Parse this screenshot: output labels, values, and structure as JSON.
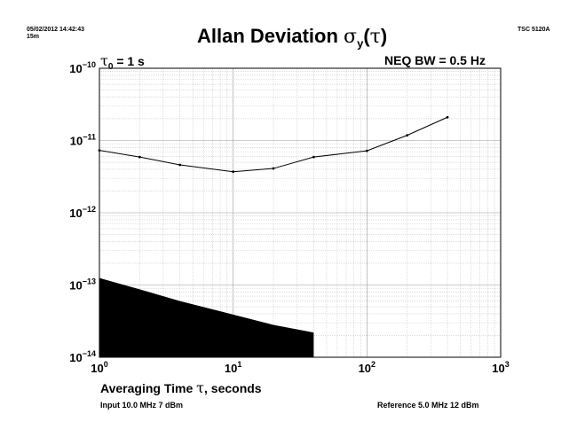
{
  "header": {
    "timestamp": "05/02/2012 14:42:43",
    "duration": "15m",
    "instrument": "TSC 5120A"
  },
  "annotations": {
    "tau0_symbol": "τ",
    "tau0_sub": "0",
    "tau0_value": "= 1 s",
    "bandwidth": "NEQ BW = 0.5 Hz"
  },
  "footer": {
    "input": "Input 10.0 MHz 7 dBm",
    "reference": "Reference 5.0 MHz 12 dBm"
  },
  "chart_data": {
    "type": "line",
    "title": {
      "text": "Allan Deviation ",
      "symbol": "σ",
      "sub": "y",
      "arg_open": "(",
      "arg_symbol": "τ",
      "arg_close": ")"
    },
    "xlabel": {
      "text": "Averaging Time ",
      "symbol": "τ",
      "suffix": ", seconds"
    },
    "x_scale": "log",
    "y_scale": "log",
    "xlim": [
      1,
      1000
    ],
    "ylim": [
      1e-14,
      1e-10
    ],
    "x_ticks": [
      {
        "base": "10",
        "exp": "0"
      },
      {
        "base": "10",
        "exp": "1"
      },
      {
        "base": "10",
        "exp": "2"
      },
      {
        "base": "10",
        "exp": "3"
      }
    ],
    "y_ticks": [
      {
        "base": "10",
        "exp": "−10"
      },
      {
        "base": "10",
        "exp": "−11"
      },
      {
        "base": "10",
        "exp": "−12"
      },
      {
        "base": "10",
        "exp": "−13"
      },
      {
        "base": "10",
        "exp": "−14"
      }
    ],
    "grid": true,
    "series": [
      {
        "x": [
          1,
          2,
          4,
          10,
          20,
          40,
          100,
          200,
          400
        ],
        "y": [
          7.3e-12,
          5.9e-12,
          4.6e-12,
          3.7e-12,
          4.1e-12,
          5.9e-12,
          7.2e-12,
          1.18e-11,
          2.1e-11
        ]
      }
    ],
    "noise_floor": {
      "x": [
        1,
        2,
        4,
        10,
        20,
        40
      ],
      "y": [
        1.25e-13,
        8.7e-14,
        6e-14,
        3.9e-14,
        2.8e-14,
        2.2e-14
      ]
    }
  }
}
